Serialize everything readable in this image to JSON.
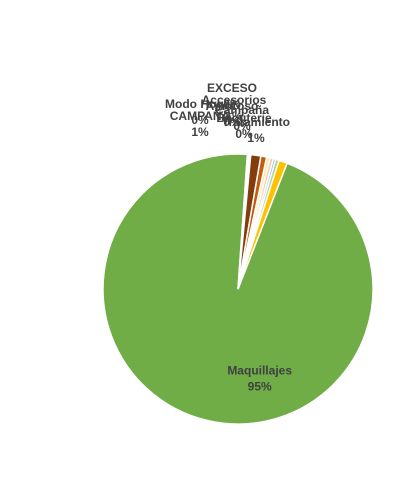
{
  "chart_data": {
    "type": "pie",
    "title": "",
    "slices": [
      {
        "label": "Maquillajes",
        "value_text": "95%",
        "value": 95,
        "color": "#70ad47"
      },
      {
        "label": "Modo Hogar",
        "value_text": "0%",
        "value": 0.4,
        "color": "#ffffff"
      },
      {
        "label": "CAMPAÑA",
        "value_text": "1%",
        "value": 1.2,
        "color": "#843c0c"
      },
      {
        "label": "Accesorios",
        "value_text": "1%",
        "value": 0.7,
        "color": "#c55a11"
      },
      {
        "label": "Amoroso",
        "value_text": "0%",
        "value": 0.4,
        "color": "#ffe699"
      },
      {
        "label": "Campaña",
        "value_text": "0%",
        "value": 0.4,
        "color": "#f8cbad"
      },
      {
        "label": "EXCESO",
        "value_text": "0%",
        "value": 0.3,
        "color": "#9dc3e6"
      },
      {
        "label": "Bijouterie",
        "value_text": "0%",
        "value": 0.4,
        "color": "#a9d18e"
      },
      {
        "label": "Tratamiento",
        "value_text": "1%",
        "value": 1.0,
        "color": "#ffc000"
      }
    ]
  }
}
